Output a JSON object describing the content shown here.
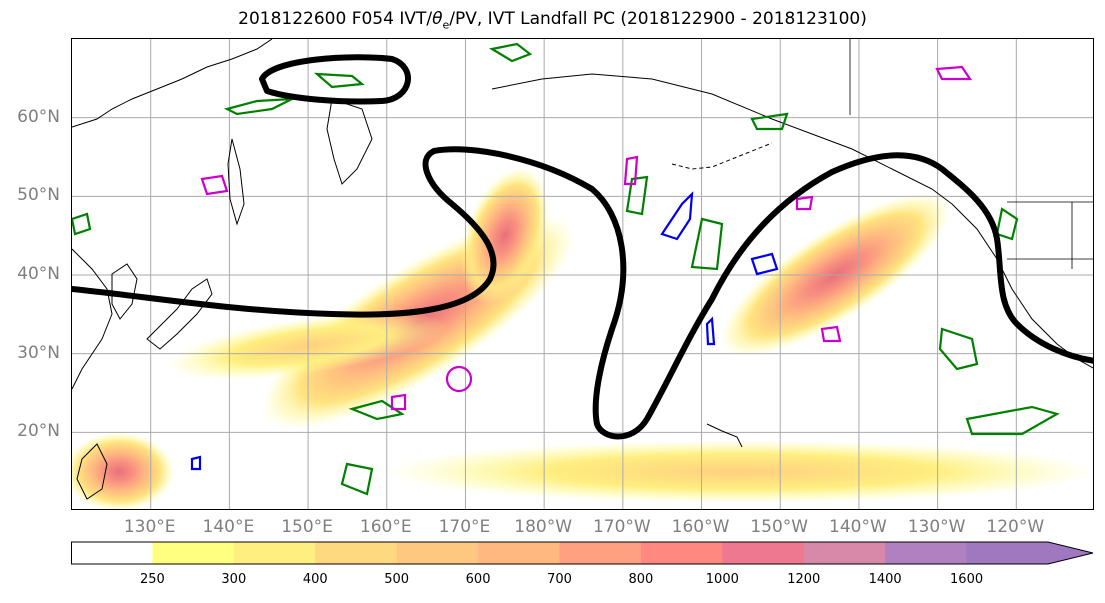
{
  "title": {
    "prefix": "2018122600 F054 IVT/",
    "theta": "θ",
    "theta_sub": "e",
    "suffix": "/PV, IVT Landfall PC (2018122900 - 2018123100)"
  },
  "map": {
    "projection": "PlateCarree",
    "extent": {
      "lon_min_east": 120,
      "lon_max_east": 250,
      "lat_min": 10,
      "lat_max": 70
    },
    "gridlines": true,
    "lat_ticks": [
      {
        "value": 20,
        "label": "20°N"
      },
      {
        "value": 30,
        "label": "30°N"
      },
      {
        "value": 40,
        "label": "40°N"
      },
      {
        "value": 50,
        "label": "50°N"
      },
      {
        "value": 60,
        "label": "60°N"
      }
    ],
    "lon_ticks": [
      {
        "value": 130,
        "label": "130°E"
      },
      {
        "value": 140,
        "label": "140°E"
      },
      {
        "value": 150,
        "label": "150°E"
      },
      {
        "value": 160,
        "label": "160°E"
      },
      {
        "value": 170,
        "label": "170°E"
      },
      {
        "value": 180,
        "label": "180°W"
      },
      {
        "value": 190,
        "label": "170°W"
      },
      {
        "value": 200,
        "label": "160°W"
      },
      {
        "value": 210,
        "label": "150°W"
      },
      {
        "value": 220,
        "label": "140°W"
      },
      {
        "value": 230,
        "label": "130°W"
      },
      {
        "value": 240,
        "label": "120°W"
      }
    ],
    "colors": {
      "land_outline": "#000000",
      "landfall_contour": "#000000",
      "pv_contour": "#008000",
      "theta_e_contour_a": "#cc00cc",
      "theta_e_contour_b": "#0000ee",
      "grid": "#aaaaaa"
    },
    "ivt_plumes": [
      {
        "name": "central-pacific",
        "cx": 164,
        "cy": 34,
        "rx": 23,
        "ry": 7,
        "rot": -32,
        "peak": 1000
      },
      {
        "name": "hook-north",
        "cx": 175,
        "cy": 45,
        "rx": 9,
        "ry": 5,
        "rot": -70,
        "peak": 800
      },
      {
        "name": "west-pacific-tail",
        "cx": 150,
        "cy": 31,
        "rx": 18,
        "ry": 3.5,
        "rot": -8,
        "peak": 400
      },
      {
        "name": "northeast-pacific",
        "cx": 217,
        "cy": 40,
        "rx": 17,
        "ry": 5.5,
        "rot": -33,
        "peak": 600
      },
      {
        "name": "tropical-band",
        "cx": 205,
        "cy": 15,
        "rx": 45,
        "ry": 4,
        "rot": 0,
        "peak": 300
      },
      {
        "name": "tropical-west",
        "cx": 126,
        "cy": 15,
        "rx": 7,
        "ry": 5,
        "rot": 0,
        "peak": 800
      }
    ]
  },
  "colorbar": {
    "levels": [
      250,
      300,
      400,
      500,
      600,
      700,
      800,
      1000,
      1200,
      1400,
      1600
    ],
    "colors": [
      "#ffffff",
      "#ffff80",
      "#ffee80",
      "#ffd980",
      "#ffc880",
      "#ffb880",
      "#ffa080",
      "#ff8880",
      "#ee7890",
      "#d888a8",
      "#b080c0",
      "#a078c0"
    ],
    "extend": "max"
  }
}
